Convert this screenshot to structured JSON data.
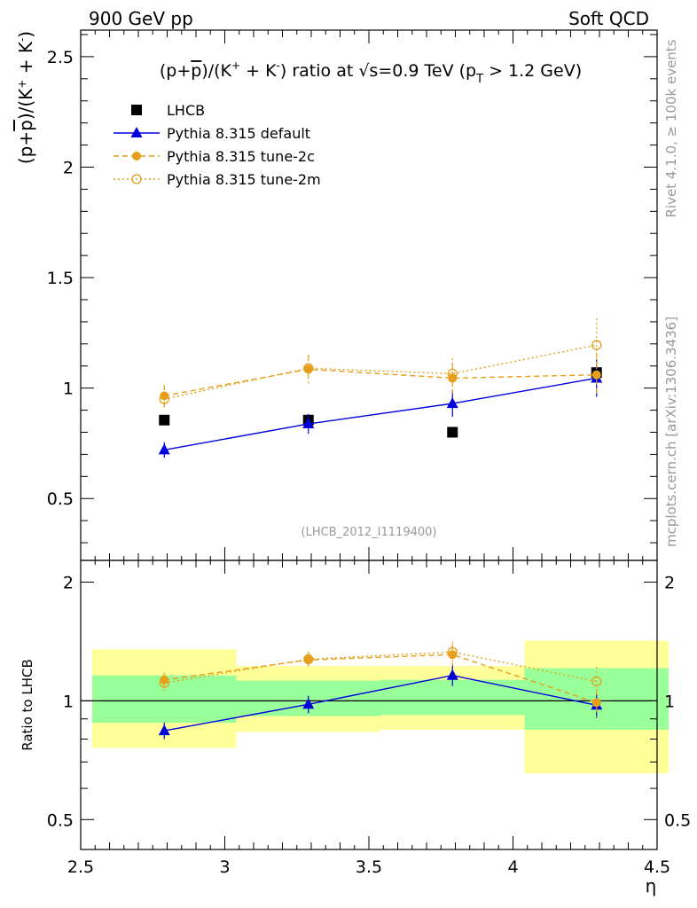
{
  "header": {
    "left": "900 GeV pp",
    "right": "Soft QCD"
  },
  "side_labels": {
    "rivet": "Rivet 4.1.0, ≥ 100k events",
    "mcplots": "mcplots.cern.ch [arXiv:1306.3436]"
  },
  "colors": {
    "data": "#000000",
    "default": "#0000dd",
    "tune2c": "#e69f1a",
    "tune2m": "#e69f1a",
    "band_inner": "#99ff99",
    "band_outer": "#ffff99"
  },
  "chart_data": [
    {
      "type": "scatter",
      "panel": "main",
      "title": "(p+p̄)/(K⁺ + K⁻) ratio at √s=0.9 TeV (p_T > 1.2 GeV)",
      "ylabel": "(p+p̄)/(K⁺ + K⁻)",
      "xlim": [
        2.5,
        4.5
      ],
      "ylim": [
        0.22,
        2.62
      ],
      "yticks": [
        "0.5",
        "1",
        "1.5",
        "2",
        "2.5"
      ],
      "watermark": "(LHCB_2012_I1119400)",
      "x": [
        2.75,
        3.25,
        3.75,
        4.25
      ],
      "series": [
        {
          "name": "LHCB",
          "key": "data",
          "values": [
            0.855,
            0.855,
            0.8,
            1.07
          ],
          "err": [
            0.0,
            0.0,
            0.0,
            0.0
          ]
        },
        {
          "name": "Pythia 8.315 default",
          "key": "default",
          "values": [
            0.72,
            0.838,
            0.93,
            1.045
          ],
          "err": [
            0.035,
            0.045,
            0.06,
            0.085
          ]
        },
        {
          "name": "Pythia 8.315 tune-2c",
          "key": "tune2c",
          "values": [
            0.965,
            1.085,
            1.045,
            1.06
          ],
          "err": [
            0.05,
            0.065,
            0.07,
            0.1
          ]
        },
        {
          "name": "Pythia 8.315 tune-2m",
          "key": "tune2m",
          "values": [
            0.95,
            1.09,
            1.065,
            1.195
          ],
          "err": [
            0.05,
            0.06,
            0.07,
            0.12
          ]
        }
      ]
    },
    {
      "type": "scatter",
      "panel": "ratio",
      "ylabel": "Ratio to LHCB",
      "xlabel": "η",
      "xlim": [
        2.5,
        4.5
      ],
      "ylim": [
        0.42,
        2.27
      ],
      "xticks": [
        "2.5",
        "3",
        "3.5",
        "4",
        "4.5"
      ],
      "yticks": [
        "0.5",
        "1",
        "2"
      ],
      "reference": 1.0,
      "bands": [
        {
          "x": [
            2.5,
            3.0
          ],
          "inner": [
            0.88,
            1.16
          ],
          "outer": [
            0.76,
            1.35
          ]
        },
        {
          "x": [
            3.0,
            3.5
          ],
          "inner": [
            0.915,
            1.125
          ],
          "outer": [
            0.835,
            1.225
          ]
        },
        {
          "x": [
            3.5,
            4.0
          ],
          "inner": [
            0.92,
            1.13
          ],
          "outer": [
            0.845,
            1.225
          ]
        },
        {
          "x": [
            4.0,
            4.5
          ],
          "inner": [
            0.845,
            1.21
          ],
          "outer": [
            0.655,
            1.42
          ]
        }
      ],
      "x": [
        2.75,
        3.25,
        3.75,
        4.25
      ],
      "series": [
        {
          "name": "Pythia 8.315 default",
          "key": "default",
          "values": [
            0.84,
            0.98,
            1.16,
            0.975
          ],
          "err": [
            0.04,
            0.05,
            0.07,
            0.07
          ]
        },
        {
          "name": "Pythia 8.315 tune-2c",
          "key": "tune2c",
          "values": [
            1.13,
            1.27,
            1.31,
            0.99
          ],
          "err": [
            0.05,
            0.06,
            0.08,
            0.08
          ]
        },
        {
          "name": "Pythia 8.315 tune-2m",
          "key": "tune2m",
          "values": [
            1.11,
            1.275,
            1.33,
            1.12
          ],
          "err": [
            0.05,
            0.06,
            0.08,
            0.1
          ]
        }
      ]
    }
  ]
}
